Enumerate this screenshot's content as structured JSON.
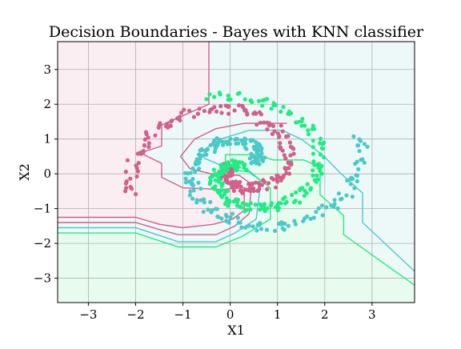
{
  "chart_data": {
    "type": "scatter",
    "title": "Decision Boundaries - Bayes with KNN classifier",
    "xlabel": "X1",
    "ylabel": "X2",
    "xlim": [
      -3.65,
      3.9
    ],
    "ylim": [
      -3.7,
      3.8
    ],
    "xticks": [
      -3,
      -2,
      -1,
      0,
      1,
      2,
      3
    ],
    "yticks": [
      -3,
      -2,
      -1,
      0,
      1,
      2,
      3
    ],
    "grid": true,
    "legend": "none",
    "classes": [
      {
        "color": "#d1608a",
        "region_fill": "#fbeef2",
        "spiral": {
          "start_angle_deg": 200,
          "end_angle_deg": 560,
          "start_radius": 0.1,
          "end_radius": 2.3,
          "center": [
            0.1,
            0.2
          ]
        }
      },
      {
        "color": "#4bc9c9",
        "region_fill": "#ecf9f8",
        "spiral": {
          "start_angle_deg": 20,
          "end_angle_deg": 380,
          "start_radius": 0.1,
          "end_radius": 2.5,
          "center": [
            0.4,
            0.3
          ]
        }
      },
      {
        "color": "#21ec84",
        "region_fill": "#e7fcef",
        "spiral": {
          "start_angle_deg": 470,
          "end_angle_deg": 830,
          "start_radius": 0.1,
          "end_radius": 2.2,
          "center": [
            0.3,
            0.1
          ]
        }
      }
    ],
    "boundaries": [
      {
        "color": "#d1608a",
        "points": [
          [
            -0.45,
            3.8
          ],
          [
            -0.45,
            2.0
          ],
          [
            -1.45,
            1.4
          ],
          [
            -1.45,
            0.8
          ],
          [
            -1.9,
            0.6
          ],
          [
            -1.45,
            0.3
          ],
          [
            -1.45,
            -0.1
          ],
          [
            -1.0,
            -0.4
          ],
          [
            -0.2,
            -0.45
          ],
          [
            0.3,
            -0.4
          ],
          [
            0.3,
            -1.05
          ],
          [
            0.05,
            -1.3
          ],
          [
            -0.35,
            -1.45
          ],
          [
            -1.0,
            -1.55
          ],
          [
            -1.5,
            -1.45
          ],
          [
            -2.0,
            -1.25
          ],
          [
            -3.65,
            -1.25
          ]
        ]
      },
      {
        "color": "#d1608a",
        "points": [
          [
            -3.65,
            -1.4
          ],
          [
            -2.0,
            -1.4
          ],
          [
            -1.5,
            -1.6
          ],
          [
            -1.1,
            -1.75
          ],
          [
            -0.3,
            -1.75
          ],
          [
            0.1,
            -1.5
          ],
          [
            0.4,
            -1.15
          ],
          [
            0.45,
            -0.3
          ],
          [
            0.2,
            -0.05
          ],
          [
            -0.4,
            0.0
          ],
          [
            -0.85,
            0.15
          ],
          [
            -1.05,
            0.5
          ],
          [
            -0.75,
            1.0
          ],
          [
            -0.3,
            1.3
          ],
          [
            0.3,
            1.45
          ],
          [
            1.2,
            1.45
          ]
        ]
      },
      {
        "color": "#4bc9c9",
        "points": [
          [
            -3.65,
            -1.55
          ],
          [
            -2.0,
            -1.55
          ],
          [
            -1.55,
            -1.75
          ],
          [
            -1.1,
            -1.95
          ],
          [
            -0.3,
            -1.95
          ],
          [
            0.1,
            -1.7
          ],
          [
            0.55,
            -1.3
          ],
          [
            0.65,
            -0.2
          ],
          [
            0.35,
            0.15
          ],
          [
            -0.2,
            0.25
          ],
          [
            -0.55,
            0.45
          ],
          [
            -0.55,
            0.7
          ],
          [
            -0.2,
            1.0
          ],
          [
            0.4,
            1.25
          ],
          [
            1.1,
            1.25
          ],
          [
            1.5,
            1.0
          ],
          [
            1.95,
            0.55
          ],
          [
            2.35,
            0.0
          ],
          [
            2.8,
            -0.55
          ],
          [
            2.8,
            -1.4
          ],
          [
            3.9,
            -2.8
          ]
        ]
      },
      {
        "color": "#21ec84",
        "points": [
          [
            -3.65,
            -1.7
          ],
          [
            -2.0,
            -1.7
          ],
          [
            -1.55,
            -1.9
          ],
          [
            -1.1,
            -2.1
          ],
          [
            -0.3,
            -2.1
          ],
          [
            0.25,
            -1.8
          ],
          [
            0.85,
            -1.3
          ],
          [
            0.85,
            -0.4
          ],
          [
            0.4,
            0.05
          ],
          [
            -0.1,
            0.15
          ],
          [
            -0.1,
            0.55
          ],
          [
            0.6,
            0.55
          ],
          [
            0.9,
            0.4
          ],
          [
            1.55,
            0.4
          ],
          [
            1.9,
            0.2
          ],
          [
            1.9,
            -0.6
          ],
          [
            2.4,
            -1.2
          ],
          [
            2.4,
            -1.75
          ],
          [
            3.9,
            -3.2
          ]
        ]
      }
    ]
  }
}
